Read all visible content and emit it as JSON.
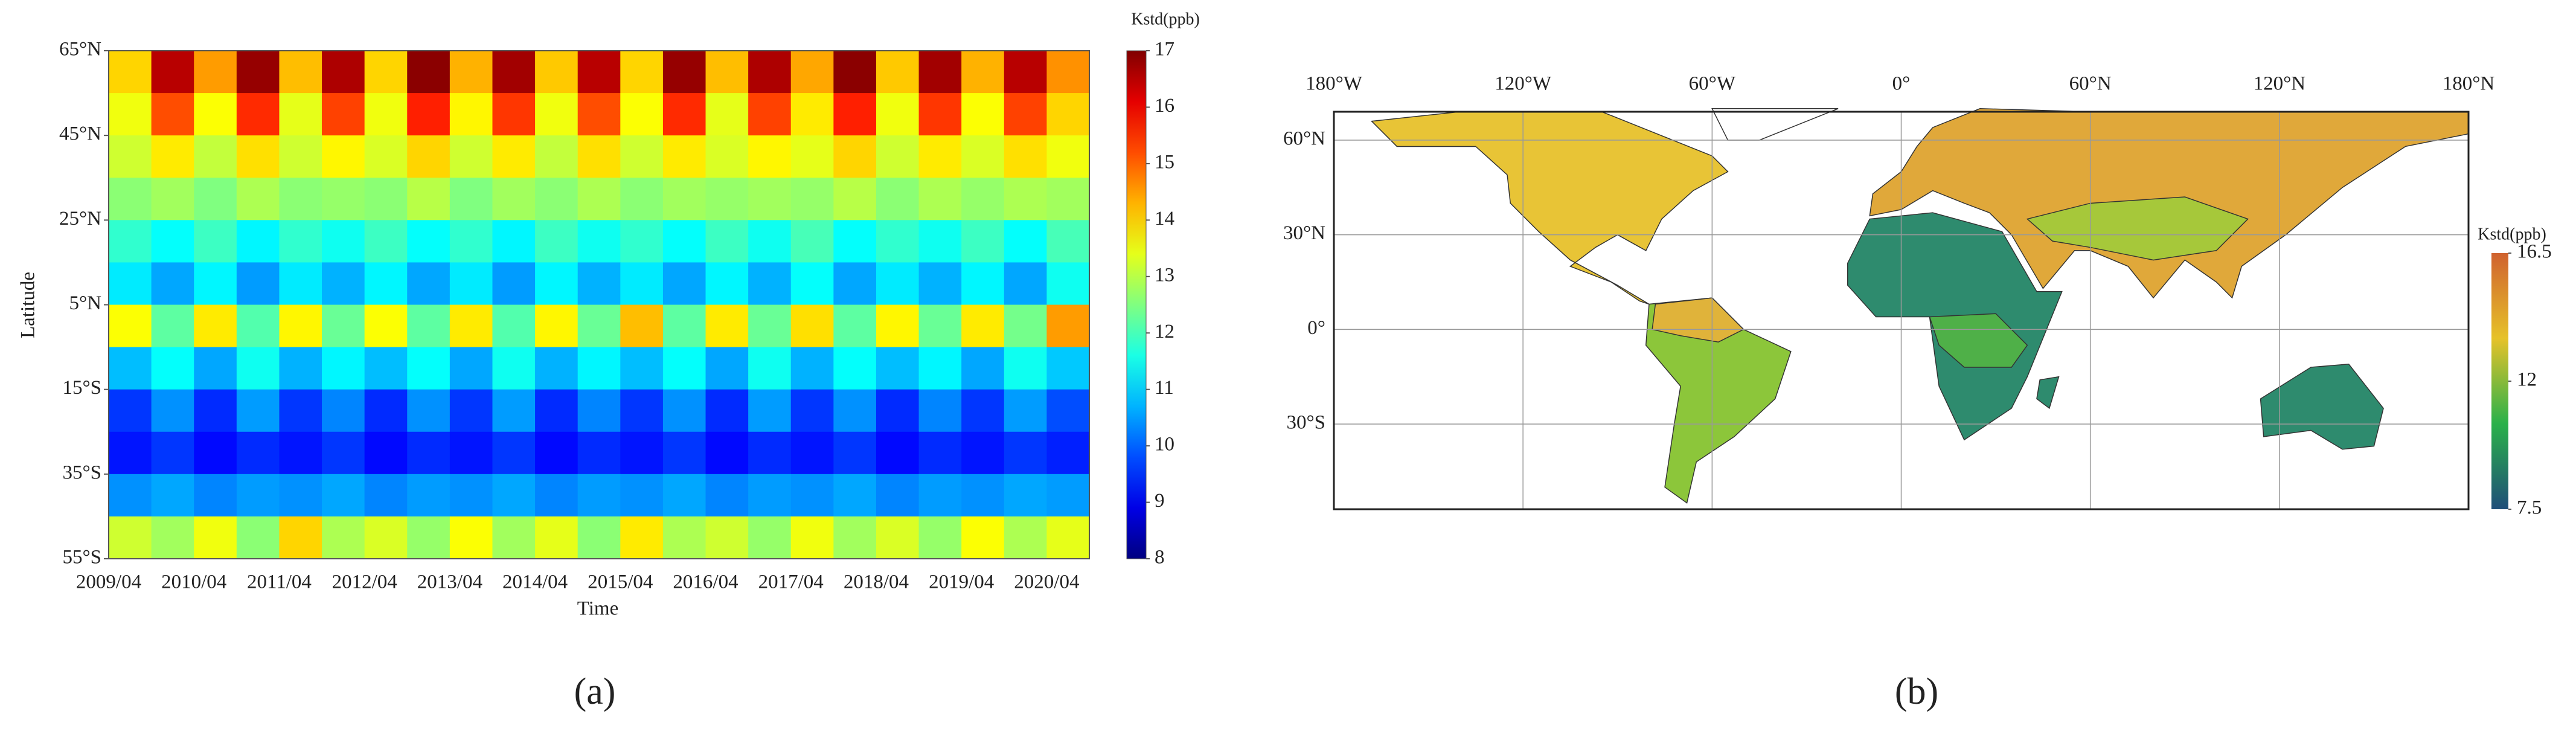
{
  "chart_data": [
    {
      "type": "heatmap",
      "panel_label": "(a)",
      "xlabel": "Time",
      "ylabel": "Latitude",
      "colorbar_label": "Kstd(ppb)",
      "colormap": "jet",
      "x": [
        "2009/04",
        null,
        "2010/04",
        null,
        "2011/04",
        null,
        "2012/04",
        null,
        "2013/04",
        null,
        "2014/04",
        null,
        "2015/04",
        null,
        "2016/04",
        null,
        "2017/04",
        null,
        "2018/04",
        null,
        "2019/04",
        null,
        "2020/04"
      ],
      "rows": [
        60,
        50,
        40,
        30,
        20,
        10,
        0,
        -10,
        -20,
        -30,
        -40,
        -50
      ],
      "ylim": [
        -55,
        65
      ],
      "yticks": [
        {
          "value": 65,
          "label": "65°N"
        },
        {
          "value": 45,
          "label": "45°N"
        },
        {
          "value": 25,
          "label": "25°N"
        },
        {
          "value": 5,
          "label": "5°N"
        },
        {
          "value": -15,
          "label": "15°S"
        },
        {
          "value": -35,
          "label": "35°S"
        },
        {
          "value": -55,
          "label": "55°S"
        }
      ],
      "zlim": [
        8,
        17
      ],
      "zticks": [
        8,
        9,
        10,
        11,
        12,
        13,
        14,
        15,
        16,
        17
      ],
      "z": [
        [
          14,
          16.5,
          14.5,
          16.8,
          14.2,
          16.6,
          14,
          16.9,
          14.3,
          16.7,
          14.1,
          16.5,
          14,
          16.8,
          14.2,
          16.6,
          14.4,
          16.9,
          14.1,
          16.7,
          14.3,
          16.5,
          14.6
        ],
        [
          13.5,
          15.2,
          13.6,
          15.5,
          13.4,
          15.3,
          13.5,
          15.6,
          13.7,
          15.4,
          13.5,
          15.2,
          13.6,
          15.5,
          13.4,
          15.3,
          13.8,
          15.6,
          13.5,
          15.4,
          13.6,
          15.3,
          14
        ],
        [
          13.2,
          13.8,
          13.1,
          13.9,
          13.2,
          13.7,
          13.3,
          14,
          13.2,
          13.8,
          13.1,
          13.9,
          13.2,
          13.8,
          13.3,
          13.7,
          13.4,
          14,
          13.2,
          13.8,
          13.3,
          13.9,
          13.5
        ],
        [
          12.6,
          12.8,
          12.5,
          12.9,
          12.6,
          12.7,
          12.6,
          13,
          12.5,
          12.8,
          12.6,
          12.9,
          12.6,
          12.8,
          12.7,
          12.8,
          12.7,
          13,
          12.6,
          12.9,
          12.7,
          12.9,
          12.8
        ],
        [
          11.8,
          11.4,
          11.9,
          11.3,
          11.8,
          11.5,
          11.9,
          11.4,
          11.8,
          11.3,
          11.9,
          11.5,
          11.8,
          11.4,
          11.9,
          11.5,
          12,
          11.4,
          11.8,
          11.5,
          11.9,
          11.4,
          12
        ],
        [
          11.2,
          10.6,
          11.3,
          10.5,
          11.2,
          10.7,
          11.3,
          10.6,
          11.2,
          10.5,
          11.3,
          10.7,
          11.2,
          10.6,
          11.3,
          10.7,
          11.4,
          10.6,
          11.2,
          10.7,
          11.3,
          10.6,
          11.5
        ],
        [
          13.6,
          12.2,
          13.8,
          12.1,
          13.7,
          12.3,
          13.6,
          12.2,
          13.8,
          12.1,
          13.7,
          12.3,
          14.2,
          12.2,
          13.8,
          12.3,
          13.9,
          12.2,
          13.7,
          12.3,
          13.8,
          12.4,
          14.5
        ],
        [
          10.8,
          11.4,
          10.6,
          11.5,
          10.7,
          11.3,
          10.8,
          11.4,
          10.6,
          11.5,
          10.7,
          11.3,
          10.8,
          11.4,
          10.6,
          11.5,
          10.7,
          11.4,
          10.8,
          11.3,
          10.6,
          11.5,
          10.9
        ],
        [
          9.6,
          10.4,
          9.5,
          10.5,
          9.6,
          10.3,
          9.5,
          10.4,
          9.6,
          10.5,
          9.5,
          10.3,
          9.6,
          10.4,
          9.5,
          10.5,
          9.6,
          10.4,
          9.5,
          10.3,
          9.6,
          10.5,
          9.8
        ],
        [
          9.3,
          9.6,
          9.2,
          9.5,
          9.3,
          9.6,
          9.2,
          9.5,
          9.3,
          9.6,
          9.2,
          9.5,
          9.3,
          9.6,
          9.2,
          9.5,
          9.3,
          9.6,
          9.2,
          9.5,
          9.3,
          9.6,
          9.4
        ],
        [
          10.4,
          10.6,
          10.3,
          10.5,
          10.4,
          10.6,
          10.3,
          10.5,
          10.4,
          10.6,
          10.3,
          10.5,
          10.4,
          10.6,
          10.3,
          10.5,
          10.4,
          10.6,
          10.3,
          10.5,
          10.4,
          10.6,
          10.5
        ],
        [
          13.2,
          12.8,
          13.5,
          12.6,
          14,
          12.9,
          13.3,
          12.7,
          13.6,
          12.8,
          13.4,
          12.6,
          13.8,
          12.9,
          13.2,
          12.7,
          13.5,
          12.8,
          13.3,
          12.7,
          13.6,
          12.9,
          13.4
        ]
      ]
    },
    {
      "type": "map",
      "panel_label": "(b)",
      "colorbar_label": "Kstd(ppb)",
      "grid": true,
      "colors": [
        "#1f4e79",
        "#2ab14a",
        "#e6c229",
        "#d0622f"
      ],
      "xlim": [
        -180,
        180
      ],
      "ylim": [
        -57,
        69
      ],
      "xticks": [
        {
          "value": -180,
          "label": "180°W"
        },
        {
          "value": -120,
          "label": "120°W"
        },
        {
          "value": -60,
          "label": "60°W"
        },
        {
          "value": 0,
          "label": "0°"
        },
        {
          "value": 60,
          "label": "60°N"
        },
        {
          "value": 120,
          "label": "120°N"
        },
        {
          "value": 180,
          "label": "180°N"
        }
      ],
      "yticks": [
        {
          "value": 60,
          "label": "60°N"
        },
        {
          "value": 30,
          "label": "30°N"
        },
        {
          "value": 0,
          "label": "0°"
        },
        {
          "value": -30,
          "label": "30°S"
        }
      ],
      "zlim": [
        7.5,
        16.5
      ],
      "zticks": [
        {
          "value": 7.5,
          "label": "7.5"
        },
        12,
        {
          "value": 16.5,
          "label": "16.5"
        }
      ]
    }
  ]
}
